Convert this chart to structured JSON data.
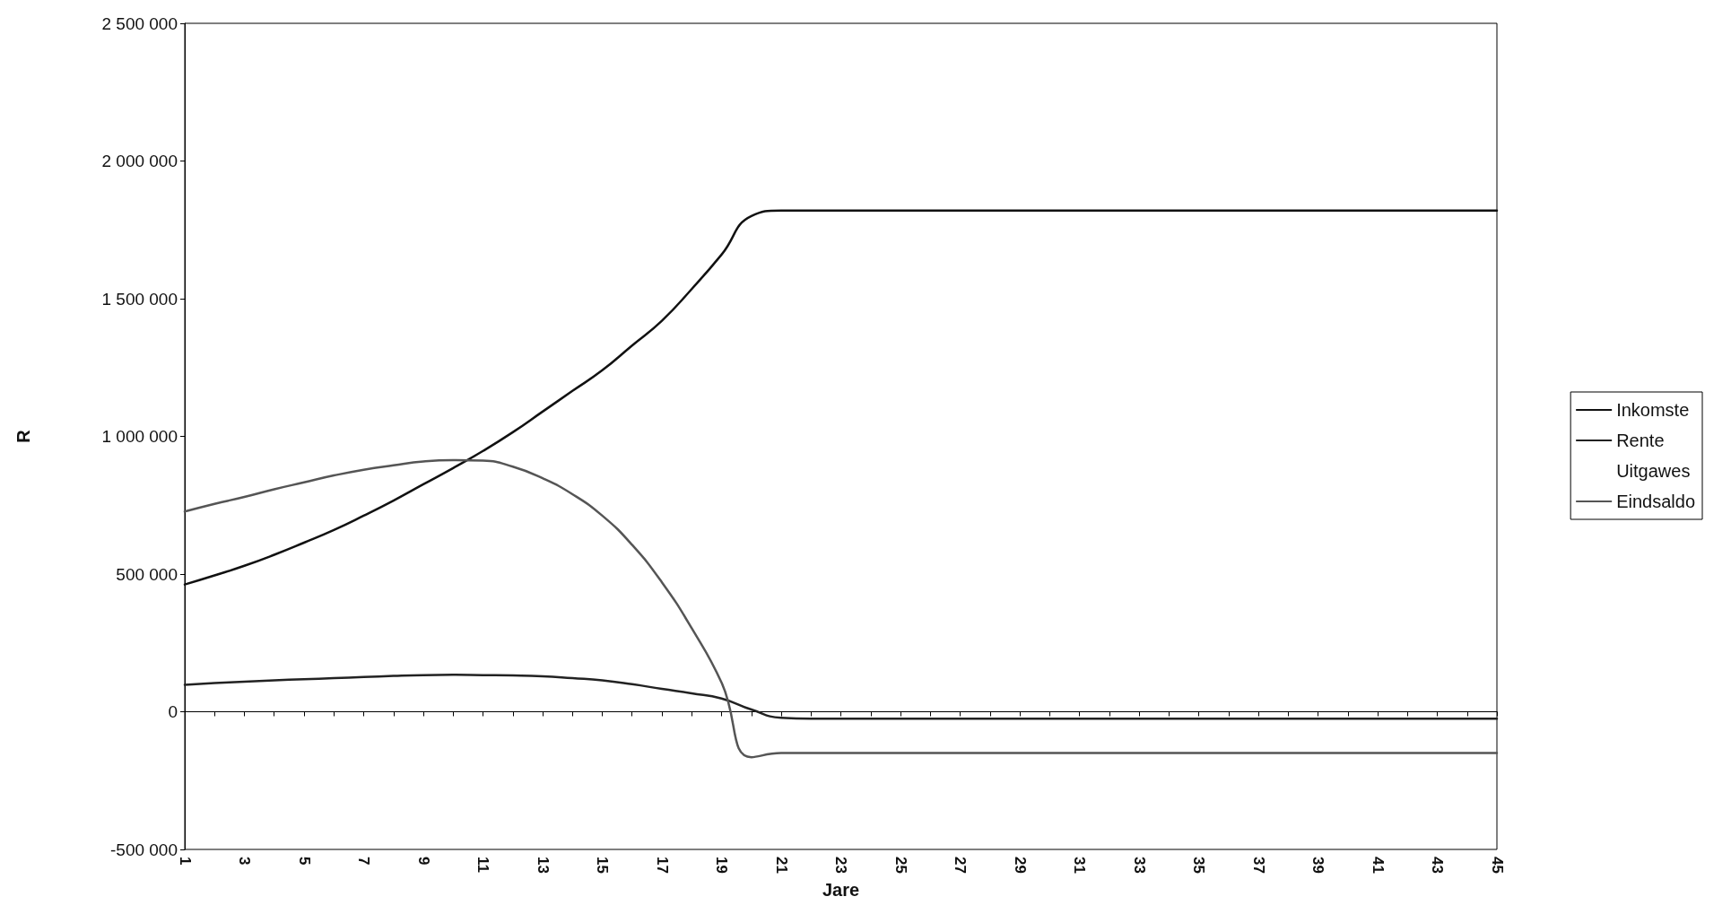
{
  "chart_data": {
    "type": "line",
    "xlabel": "Jare",
    "ylabel": "R",
    "categories": [
      "1",
      null,
      "3",
      null,
      "5",
      null,
      "7",
      null,
      "9",
      null,
      "11",
      null,
      "13",
      null,
      "15",
      null,
      "17",
      null,
      "19",
      null,
      "21",
      null,
      "23",
      null,
      "25",
      null,
      "27",
      null,
      "29",
      null,
      "31",
      null,
      "33",
      null,
      "35",
      null,
      "37",
      null,
      "39",
      null,
      "41",
      null,
      "43",
      null,
      "45"
    ],
    "series": [
      {
        "name": "Inkomste",
        "color": "#111111",
        "values": [
          462000,
          495000,
          530000,
          570000,
          614000,
          660000,
          712000,
          767000,
          826000,
          885000,
          947000,
          1015000,
          1090000,
          1165000,
          1240000,
          1330000,
          1420000,
          1535000,
          1660000,
          1800000,
          1820000,
          1820000,
          1820000,
          1820000,
          1820000,
          1820000,
          1820000,
          1820000,
          1820000,
          1820000,
          1820000,
          1820000,
          1820000,
          1820000,
          1820000,
          1820000,
          1820000,
          1820000,
          1820000,
          1820000,
          1820000,
          1820000,
          1820000,
          1820000,
          1820000
        ]
      },
      {
        "name": "Rente",
        "color": "#222222",
        "values": [
          98000,
          104000,
          109000,
          114000,
          118000,
          122000,
          126000,
          130000,
          133000,
          134000,
          133000,
          132000,
          129000,
          122000,
          114000,
          100000,
          83000,
          67000,
          48000,
          8000,
          -22000,
          -25000,
          -25000,
          -25000,
          -25000,
          -25000,
          -25000,
          -25000,
          -25000,
          -25000,
          -25000,
          -25000,
          -25000,
          -25000,
          -25000,
          -25000,
          -25000,
          -25000,
          -25000,
          -25000,
          -25000,
          -25000,
          -25000,
          -25000,
          -25000
        ]
      },
      {
        "name": "Uitgawes",
        "values": [
          null,
          null,
          null,
          null,
          null,
          null,
          null,
          null,
          null,
          null,
          null,
          null,
          null,
          null,
          null,
          null,
          null,
          null,
          null,
          null,
          null,
          null,
          null,
          null,
          null,
          null,
          null,
          null,
          null,
          null,
          null,
          null,
          null,
          null,
          null,
          null,
          null,
          null,
          null,
          null,
          null,
          null,
          null,
          null,
          null
        ]
      },
      {
        "name": "Eindsaldo",
        "color": "#555555",
        "values": [
          727000,
          755000,
          780000,
          808000,
          833000,
          858000,
          879000,
          895000,
          909000,
          914000,
          912000,
          890000,
          848000,
          790000,
          712000,
          606000,
          470000,
          303000,
          106000,
          -165000,
          -150000,
          -150000,
          -150000,
          -150000,
          -150000,
          -150000,
          -150000,
          -150000,
          -150000,
          -150000,
          -150000,
          -150000,
          -150000,
          -150000,
          -150000,
          -150000,
          -150000,
          -150000,
          -150000,
          -150000,
          -150000,
          -150000,
          -150000,
          -150000,
          -150000
        ]
      }
    ],
    "ylim": [
      -500000,
      2500000
    ],
    "yticks": [
      {
        "value": -500000,
        "label": "-500 000"
      },
      {
        "value": 0,
        "label": "0"
      },
      {
        "value": 500000,
        "label": "500 000"
      },
      {
        "value": 1000000,
        "label": "1 000 000"
      },
      {
        "value": 1500000,
        "label": "1 500 000"
      },
      {
        "value": 2000000,
        "label": "2 000 000"
      },
      {
        "value": 2500000,
        "label": "2 500 000"
      }
    ],
    "legend": "right",
    "marker": "none",
    "line_style": "solid"
  }
}
